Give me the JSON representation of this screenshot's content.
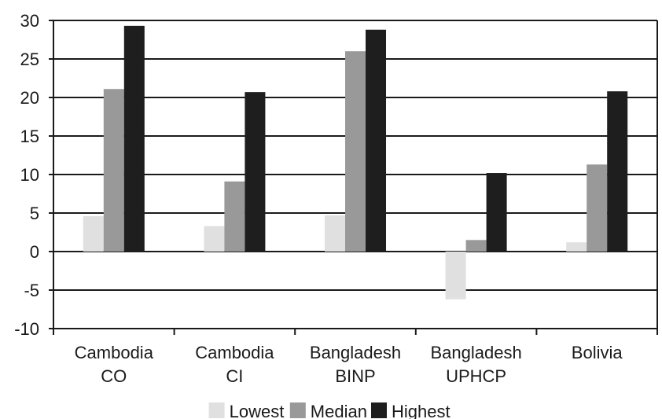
{
  "chart_data": {
    "type": "bar",
    "categories": [
      [
        "Cambodia",
        "CO"
      ],
      [
        "Cambodia",
        "CI"
      ],
      [
        "Bangladesh",
        "BINP"
      ],
      [
        "Bangladesh",
        "UPHCP"
      ],
      [
        "Bolivia",
        ""
      ]
    ],
    "series": [
      {
        "name": "Lowest",
        "color": "#e0e0e0",
        "values": [
          4.6,
          3.3,
          4.7,
          -6.2,
          1.2
        ]
      },
      {
        "name": "Median",
        "color": "#999999",
        "values": [
          21.1,
          9.1,
          26.0,
          1.5,
          11.3
        ]
      },
      {
        "name": "Highest",
        "color": "#1e1e1e",
        "values": [
          29.3,
          20.7,
          28.8,
          10.2,
          20.8
        ]
      }
    ],
    "ylim": [
      -10,
      30
    ],
    "yticks": [
      "30",
      "25",
      "20",
      "15",
      "10",
      "5",
      "0",
      "-5",
      "-10"
    ],
    "gridlines": true,
    "legend_position": "bottom"
  }
}
